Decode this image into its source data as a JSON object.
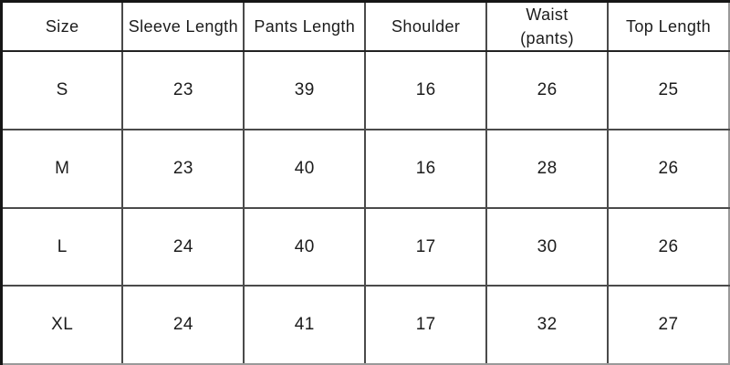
{
  "table": {
    "headers": [
      "Size",
      "Sleeve Length",
      "Pants Length",
      "Shoulder",
      "Waist\n(pants)",
      "Top Length"
    ],
    "rows": [
      [
        "S",
        "23",
        "39",
        "16",
        "26",
        "25"
      ],
      [
        "M",
        "23",
        "40",
        "16",
        "28",
        "26"
      ],
      [
        "L",
        "24",
        "40",
        "17",
        "30",
        "26"
      ],
      [
        "XL",
        "24",
        "41",
        "17",
        "32",
        "27"
      ]
    ]
  },
  "chart_data": {
    "type": "table",
    "columns": [
      "Size",
      "Sleeve Length",
      "Pants Length",
      "Shoulder",
      "Waist (pants)",
      "Top Length"
    ],
    "rows": [
      [
        "S",
        23,
        39,
        16,
        26,
        25
      ],
      [
        "M",
        23,
        40,
        16,
        28,
        26
      ],
      [
        "L",
        24,
        40,
        17,
        30,
        26
      ],
      [
        "XL",
        24,
        41,
        17,
        32,
        27
      ]
    ],
    "notes": "Garment size chart; grid on; no title or axis labels visible"
  },
  "colors": {
    "background": "#ffffff",
    "text": "#1c1c1c",
    "grid_line": "#4a4a4a",
    "outer_border": "#161616"
  }
}
